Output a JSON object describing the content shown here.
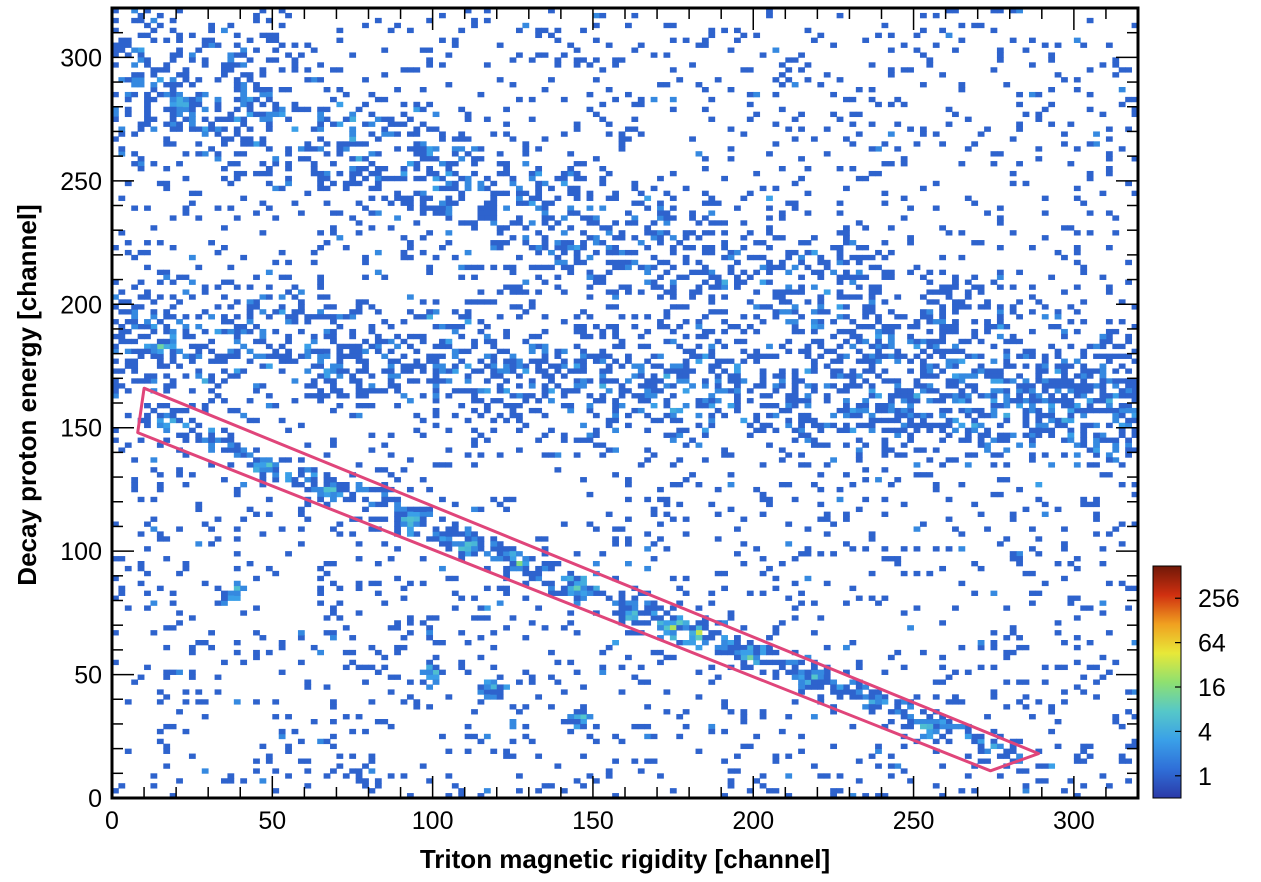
{
  "chart_data": {
    "type": "heatmap",
    "title": "",
    "xlabel": "Triton magnetic rigidity [channel]",
    "ylabel": "Decay proton energy [channel]",
    "xlim": [
      0,
      320
    ],
    "ylim": [
      0,
      320
    ],
    "x_ticks": [
      0,
      50,
      100,
      150,
      200,
      250,
      300
    ],
    "y_ticks": [
      0,
      50,
      100,
      150,
      200,
      250,
      300
    ],
    "x_tick_labels": [
      "0",
      "50",
      "100",
      "150",
      "200",
      "250",
      "300"
    ],
    "y_tick_labels": [
      "0",
      "50",
      "100",
      "150",
      "200",
      "250",
      "300"
    ],
    "bin_size": 2,
    "z_scale": "log",
    "colorbar_ticks": [
      1,
      4,
      16,
      64,
      256
    ],
    "colorbar_labels": [
      "1",
      "4",
      "16",
      "64",
      "256"
    ],
    "colorbar_range": [
      0.5,
      700
    ],
    "colormap": [
      "#2b3aa8",
      "#2f6fd8",
      "#3aa0e8",
      "#56c8c8",
      "#8fe070",
      "#e8e838",
      "#f0a020",
      "#d03010",
      "#701808"
    ],
    "grid": false,
    "gate_polygon": [
      [
        10,
        166
      ],
      [
        289,
        18
      ],
      [
        274,
        11
      ],
      [
        8,
        148
      ]
    ],
    "gate_color": "#e0457a",
    "peaks": [
      {
        "x": 48,
        "y": 134,
        "counts": 3
      },
      {
        "x": 68,
        "y": 124,
        "counts": 3
      },
      {
        "x": 93,
        "y": 112,
        "counts": 5
      },
      {
        "x": 111,
        "y": 102,
        "counts": 5
      },
      {
        "x": 127,
        "y": 95,
        "counts": 10
      },
      {
        "x": 145,
        "y": 84,
        "counts": 3
      },
      {
        "x": 162,
        "y": 74,
        "counts": 3
      },
      {
        "x": 174,
        "y": 69,
        "counts": 24
      },
      {
        "x": 182,
        "y": 66,
        "counts": 24
      },
      {
        "x": 199,
        "y": 57,
        "counts": 8
      },
      {
        "x": 218,
        "y": 48,
        "counts": 2
      },
      {
        "x": 255,
        "y": 27,
        "counts": 2
      },
      {
        "x": 100,
        "y": 50,
        "counts": 3
      },
      {
        "x": 118,
        "y": 44,
        "counts": 3
      },
      {
        "x": 146,
        "y": 32,
        "counts": 5
      },
      {
        "x": 38,
        "y": 84,
        "counts": 2
      },
      {
        "x": 22,
        "y": 281,
        "counts": 2
      },
      {
        "x": 15,
        "y": 183,
        "counts": 2
      }
    ],
    "bands": [
      {
        "x_start": 0,
        "y_start": 190,
        "x_end": 320,
        "y_end": 150,
        "spread": 25
      },
      {
        "x_start": 0,
        "y_start": 295,
        "x_end": 320,
        "y_end": 160,
        "spread": 30
      }
    ]
  }
}
